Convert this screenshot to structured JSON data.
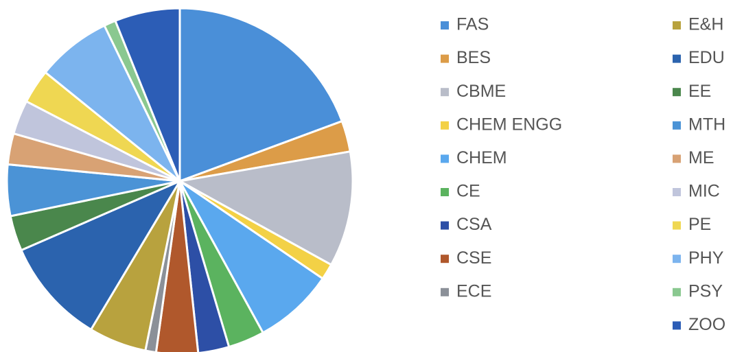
{
  "chart_data": {
    "type": "pie",
    "categories": [
      "FAS",
      "BES",
      "CBME",
      "CHEM ENGG",
      "CHEM",
      "CE",
      "CSA",
      "CSE",
      "ECE",
      "E&H",
      "EDU",
      "EE",
      "MTH",
      "ME",
      "MIC",
      "PE",
      "PHY",
      "PSY",
      "ZOO"
    ],
    "values": [
      19.4,
      2.9,
      10.8,
      1.5,
      7.5,
      3.4,
      2.9,
      3.9,
      1.0,
      5.4,
      9.9,
      3.3,
      4.8,
      2.9,
      3.2,
      3.2,
      7.0,
      1.1,
      6.1
    ],
    "colors": [
      "#4a8fd8",
      "#dc9c48",
      "#b9bdc9",
      "#f3d146",
      "#5aa8ee",
      "#5bb35f",
      "#2d4fa6",
      "#b0582c",
      "#8b9098",
      "#b8a23e",
      "#2b63ae",
      "#4a874c",
      "#4b93d6",
      "#d8a274",
      "#c0c5dc",
      "#efd752",
      "#7cb4ee",
      "#8ac890",
      "#2c5db6"
    ],
    "legend": "right"
  }
}
